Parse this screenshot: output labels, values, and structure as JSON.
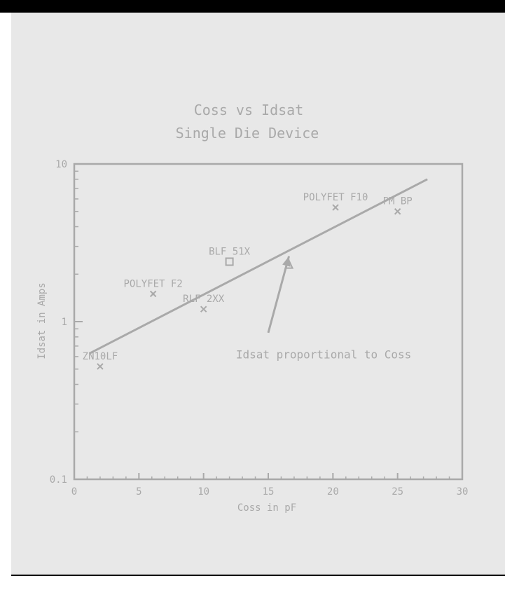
{
  "colors": {
    "top_bar": "#000000",
    "panel": "#e8e8e8",
    "ink": "#a9a9a9",
    "rule": "#000000"
  },
  "chart_data": {
    "type": "scatter",
    "title_lines": [
      "Coss vs Idsat",
      "Single Die Device"
    ],
    "xlabel": "Coss in pF",
    "ylabel": "Idsat in Amps",
    "xlim": [
      0,
      30
    ],
    "ylim": [
      0.1,
      10
    ],
    "y_scale": "log",
    "x_ticks": [
      "0",
      "5",
      "10",
      "15",
      "20",
      "25",
      "30"
    ],
    "x_tick_values": [
      0,
      5,
      10,
      15,
      20,
      25,
      30
    ],
    "y_ticks": [
      "0.1",
      "1",
      "10"
    ],
    "y_tick_values": [
      0.1,
      1,
      10
    ],
    "grid": false,
    "points": [
      {
        "label": "ZN10LF",
        "x": 2.0,
        "y": 0.52,
        "marker": "x"
      },
      {
        "label": "POLYFET F2",
        "x": 6.1,
        "y": 1.5,
        "marker": "x"
      },
      {
        "label": "RLF 2XX",
        "x": 10.0,
        "y": 1.2,
        "marker": "x"
      },
      {
        "label": "BLF 51X",
        "x": 12.0,
        "y": 2.4,
        "marker": "square"
      },
      {
        "label": "",
        "x": 16.6,
        "y": 2.3,
        "marker": "triangle"
      },
      {
        "label": "POLYFET F10",
        "x": 20.2,
        "y": 5.3,
        "marker": "x"
      },
      {
        "label": "PM BP",
        "x": 25.0,
        "y": 5.0,
        "marker": "x"
      }
    ],
    "trend_line": {
      "x": [
        1.2,
        27.3
      ],
      "y": [
        0.63,
        8.0
      ]
    },
    "annotation": {
      "text": "Idsat proportional to Coss",
      "x": 12.5,
      "y": 0.62,
      "arrow_from": [
        15.0,
        0.85
      ],
      "arrow_to": [
        16.6,
        2.6
      ]
    }
  }
}
